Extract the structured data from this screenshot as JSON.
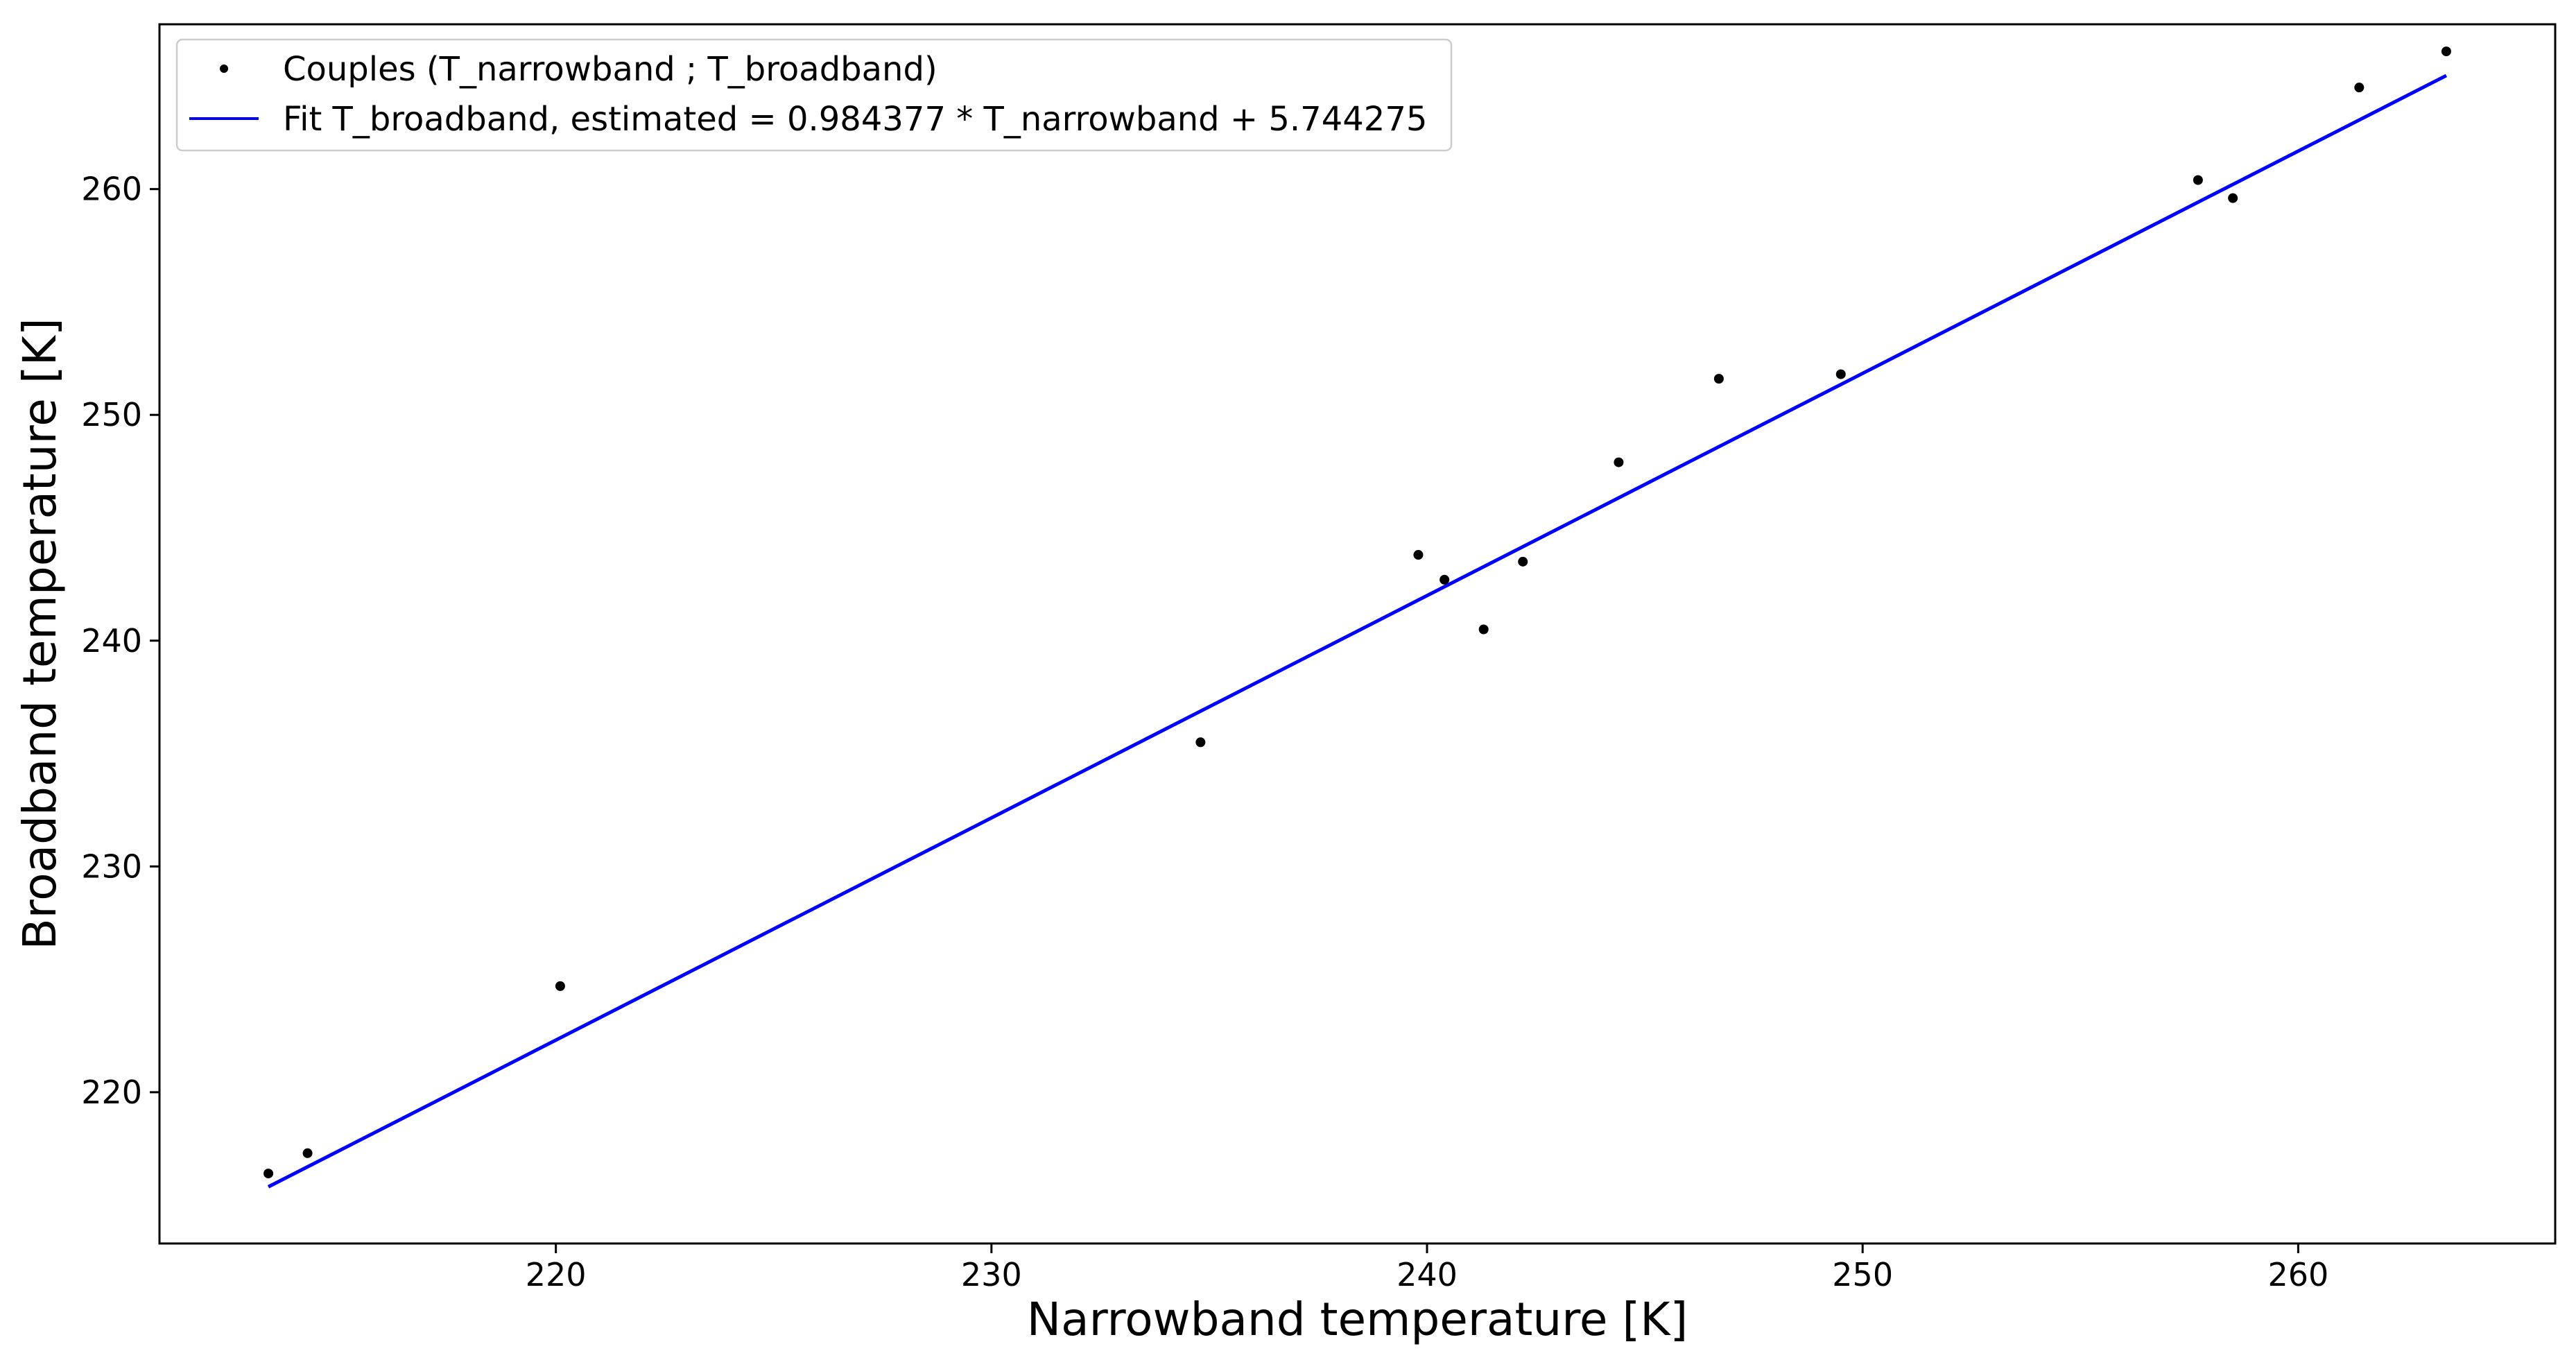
{
  "chart_data": {
    "type": "scatter",
    "xlabel": "Narrowband temperature [K]",
    "ylabel": "Broadband temperature [K]",
    "xlim": [
      210.9,
      265.9
    ],
    "ylim": [
      213.3,
      267.3
    ],
    "xticks": [
      220,
      230,
      240,
      250,
      260
    ],
    "yticks": [
      220,
      230,
      240,
      250,
      260
    ],
    "grid": false,
    "legend_position": "top-left",
    "series": [
      {
        "name": "Couples (T_narrowband ; T_broadband)",
        "kind": "points",
        "color": "#000000",
        "points": [
          {
            "x": 213.4,
            "y": 216.4
          },
          {
            "x": 214.3,
            "y": 217.3
          },
          {
            "x": 220.1,
            "y": 224.7
          },
          {
            "x": 234.8,
            "y": 235.5
          },
          {
            "x": 239.8,
            "y": 243.8
          },
          {
            "x": 240.4,
            "y": 242.7
          },
          {
            "x": 241.3,
            "y": 240.5
          },
          {
            "x": 242.2,
            "y": 243.5
          },
          {
            "x": 244.4,
            "y": 247.9
          },
          {
            "x": 246.7,
            "y": 251.6
          },
          {
            "x": 249.5,
            "y": 251.8
          },
          {
            "x": 257.7,
            "y": 260.4
          },
          {
            "x": 258.5,
            "y": 259.6
          },
          {
            "x": 261.4,
            "y": 264.5
          },
          {
            "x": 263.4,
            "y": 266.1
          }
        ]
      },
      {
        "name": "Fit T_broadband, estimated = 0.984377 * T_narrowband + 5.744275",
        "kind": "line",
        "color": "#0000ff",
        "slope": 0.984377,
        "intercept": 5.744275,
        "x_range": [
          213.4,
          263.4
        ]
      }
    ]
  }
}
